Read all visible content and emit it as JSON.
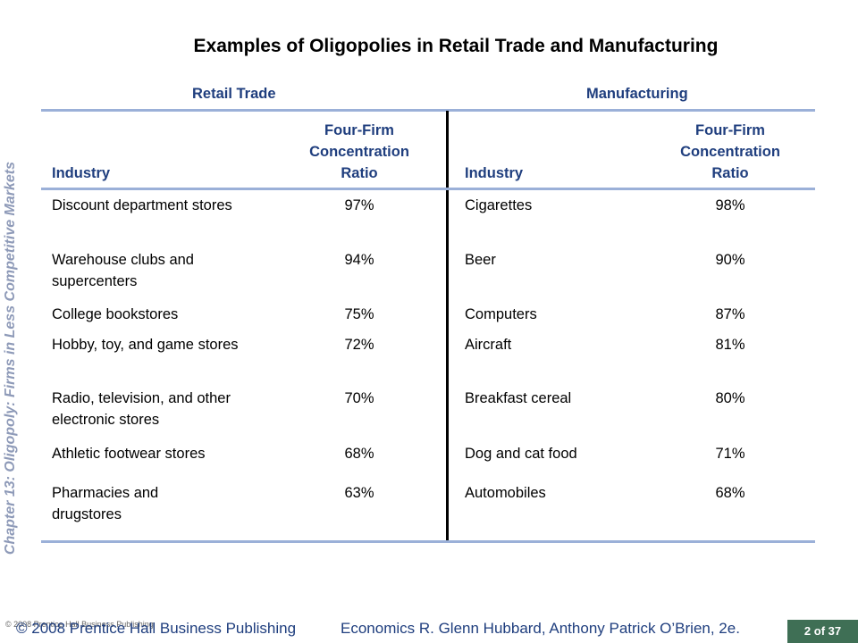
{
  "side_label": "Chapter 13:  Oligopoly: Firms in Less Competitive Markets",
  "title": "Examples of Oligopolies in Retail Trade and Manufacturing",
  "sections": {
    "retail": "Retail Trade",
    "manufacturing": "Manufacturing"
  },
  "headers": {
    "industry": "Industry",
    "ratio_line1": "Four-Firm",
    "ratio_line2": "Concentration",
    "ratio_line3": "Ratio"
  },
  "rows": [
    {
      "retail_industry": "Discount department stores",
      "retail_ratio": "97%",
      "mfg_industry": "Cigarettes",
      "mfg_ratio": "98%"
    },
    {
      "retail_industry": "Warehouse clubs and supercenters",
      "retail_ratio": "94%",
      "mfg_industry": "Beer",
      "mfg_ratio": "90%"
    },
    {
      "retail_industry": "College bookstores",
      "retail_ratio": "75%",
      "mfg_industry": "Computers",
      "mfg_ratio": "87%"
    },
    {
      "retail_industry": "Hobby, toy, and game stores",
      "retail_ratio": "72%",
      "mfg_industry": "Aircraft",
      "mfg_ratio": "81%"
    },
    {
      "retail_industry": "Radio, television, and other electronic stores",
      "retail_ratio": "70%",
      "mfg_industry": "Breakfast cereal",
      "mfg_ratio": "80%"
    },
    {
      "retail_industry": "Athletic footwear stores",
      "retail_ratio": "68%",
      "mfg_industry": "Dog and cat food",
      "mfg_ratio": "71%"
    },
    {
      "retail_industry": "Pharmacies and drugstores",
      "retail_ratio": "63%",
      "mfg_industry": "Automobiles",
      "mfg_ratio": "68%"
    }
  ],
  "footer": {
    "copyright_small": "© 2008 Prentice Hall Business Publishing",
    "copyright": "© 2008 Prentice Hall Business Publishing",
    "book": "Economics  R. Glenn Hubbard, Anthony Patrick O’Brien, 2e.",
    "page": "2 of 37"
  },
  "colors": {
    "accent": "#1f3e7e",
    "rule": "#9bb0d8",
    "badge": "#3f6f55",
    "side": "#8e9ab8"
  }
}
